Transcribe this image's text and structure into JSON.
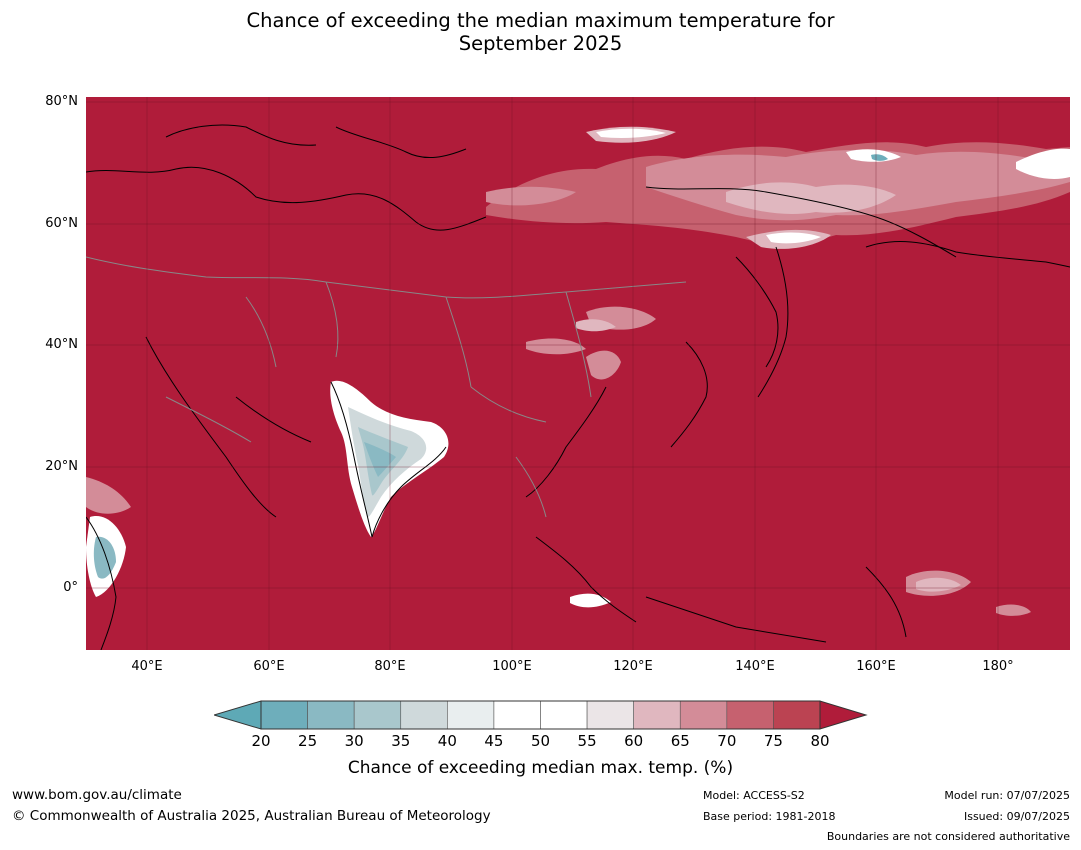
{
  "title_line1": "Chance of exceeding the median maximum temperature for",
  "title_line2": "September 2025",
  "lat_labels": [
    "80°N",
    "60°N",
    "40°N",
    "20°N",
    "0°"
  ],
  "lon_labels": [
    "40°E",
    "60°E",
    "80°E",
    "100°E",
    "120°E",
    "140°E",
    "160°E",
    "180°"
  ],
  "colorbar": {
    "ticks": [
      "20",
      "25",
      "30",
      "35",
      "40",
      "45",
      "50",
      "55",
      "60",
      "65",
      "70",
      "75",
      "80"
    ],
    "colors": [
      "#5ea9b6",
      "#6eaebb",
      "#8ab9c3",
      "#a9c7cc",
      "#cfd9db",
      "#e9eeef",
      "#ffffff",
      "#ffffff",
      "#ebe5e7",
      "#e0b7bf",
      "#d38c98",
      "#c6616f",
      "#bb4352",
      "#b01c3a"
    ],
    "label": "Chance of exceeding median max. temp. (%)"
  },
  "footer": {
    "website": "www.bom.gov.au/climate",
    "copyright": "© Commonwealth of Australia 2025, Australian Bureau of Meteorology",
    "model": "Model: ACCESS-S2",
    "base_period": "Base period: 1981-2018",
    "model_run": "Model run: 07/07/2025",
    "issued": "Issued: 09/07/2025",
    "boundaries_note": "Boundaries are not considered authoritative"
  },
  "map": {
    "background_color": "#b01c3a",
    "extent_lon": [
      30,
      192
    ],
    "extent_lat": [
      -10,
      81
    ]
  }
}
